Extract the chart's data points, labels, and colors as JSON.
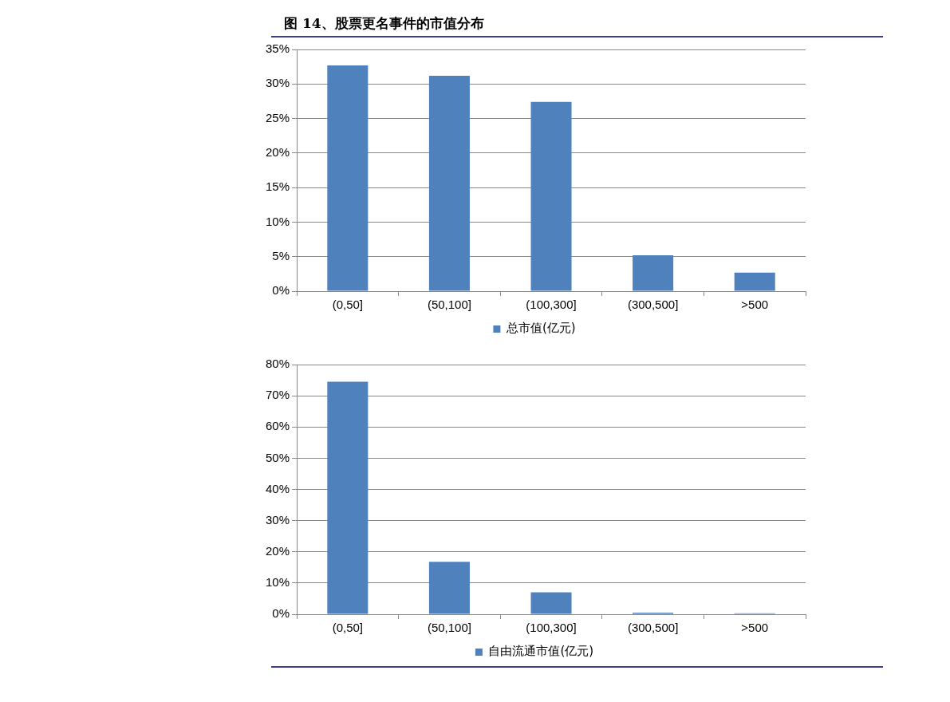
{
  "chart_data": [
    {
      "type": "bar",
      "title": "图 14、股票更名事件的市值分布",
      "categories": [
        "(0,50]",
        "(50,100]",
        "(100,300]",
        "(300,500]",
        ">500"
      ],
      "series": [
        {
          "name": "总市值(亿元)",
          "color": "#4f81bd",
          "values": [
            32.7,
            31.2,
            27.4,
            5.2,
            2.7
          ]
        }
      ],
      "ylim": [
        0,
        35
      ],
      "yticks": [
        {
          "value": 0,
          "label": "0%"
        },
        {
          "value": 5,
          "label": "5%"
        },
        {
          "value": 10,
          "label": "10%"
        },
        {
          "value": 15,
          "label": "15%"
        },
        {
          "value": 20,
          "label": "20%"
        },
        {
          "value": 25,
          "label": "25%"
        },
        {
          "value": 30,
          "label": "30%"
        },
        {
          "value": 35,
          "label": "35%"
        }
      ],
      "grid": "y",
      "legend": "bottom"
    },
    {
      "type": "bar",
      "categories": [
        "(0,50]",
        "(50,100]",
        "(100,300]",
        "(300,500]",
        ">500"
      ],
      "series": [
        {
          "name": "自由流通市值(亿元)",
          "color": "#4f81bd",
          "values": [
            74.5,
            16.8,
            7.0,
            0.5,
            0.3
          ]
        }
      ],
      "ylim": [
        0,
        80
      ],
      "yticks": [
        {
          "value": 0,
          "label": "0%"
        },
        {
          "value": 10,
          "label": "10%"
        },
        {
          "value": 20,
          "label": "20%"
        },
        {
          "value": 30,
          "label": "30%"
        },
        {
          "value": 40,
          "label": "40%"
        },
        {
          "value": 50,
          "label": "50%"
        },
        {
          "value": 60,
          "label": "60%"
        },
        {
          "value": 70,
          "label": "70%"
        },
        {
          "value": 80,
          "label": "80%"
        }
      ],
      "grid": "y",
      "legend": "bottom"
    }
  ]
}
